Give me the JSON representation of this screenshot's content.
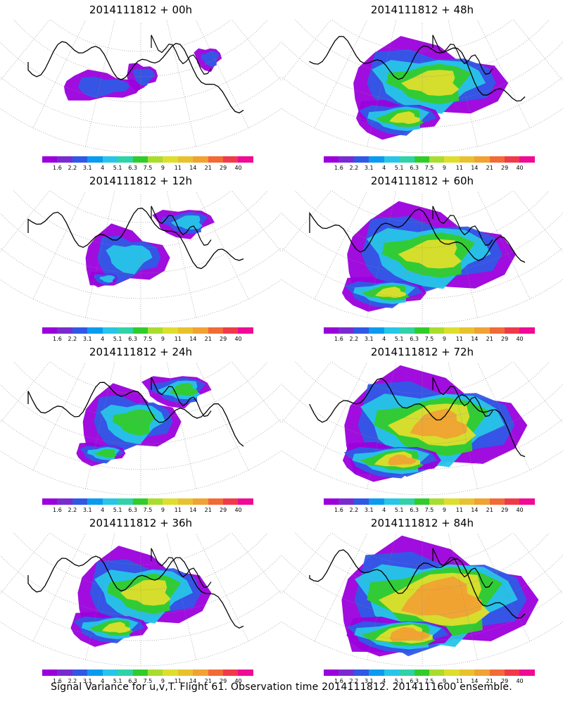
{
  "colorbar": {
    "labels": [
      "1.6",
      "2.2",
      "3.1",
      "4",
      "5.1",
      "6.3",
      "7.5",
      "9",
      "11",
      "14",
      "21",
      "29",
      "40"
    ],
    "colors": [
      "#9b00dc",
      "#7a2bd0",
      "#3058e6",
      "#0a9bf0",
      "#27c5e8",
      "#30d2a8",
      "#31cc2b",
      "#a8dd2e",
      "#dede2c",
      "#e8c22e",
      "#f0a233",
      "#f26a36",
      "#f03a4a",
      "#f00a96"
    ]
  },
  "panels": [
    {
      "title": "2014111812 + 00h"
    },
    {
      "title": "2014111812 + 48h"
    },
    {
      "title": "2014111812 + 12h"
    },
    {
      "title": "2014111812 + 60h"
    },
    {
      "title": "2014111812 + 24h"
    },
    {
      "title": "2014111812 + 72h"
    },
    {
      "title": "2014111812 + 36h"
    },
    {
      "title": "2014111812 + 84h"
    }
  ],
  "footer": {
    "caption": "Signal Variance for u,v,T. Flight 61. Observation time 2014111812. 2014111600 ensemble."
  }
}
